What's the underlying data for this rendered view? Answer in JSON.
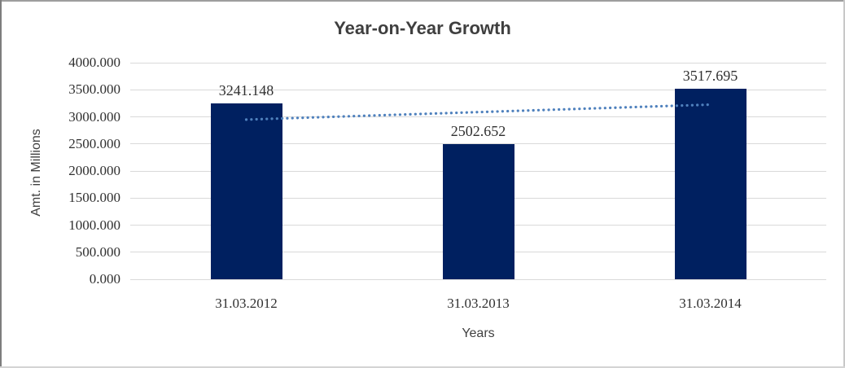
{
  "window": {
    "background": "#ffffff",
    "border_colors": {
      "top": "#9e9e9e",
      "left": "#7d7d7d",
      "right": "#c8c8c8",
      "bottom": "#d4d4d4"
    }
  },
  "chart_data": {
    "type": "bar",
    "title": "Year-on-Year Growth",
    "xlabel": "Years",
    "ylabel": "Amt. in Millions",
    "categories": [
      "31.03.2012",
      "31.03.2013",
      "31.03.2014"
    ],
    "values": [
      3241.148,
      2502.652,
      3517.695
    ],
    "data_labels": [
      "3241.148",
      "2502.652",
      "3517.695"
    ],
    "ylim": [
      0,
      4000
    ],
    "ytick_step": 500,
    "ytick_labels": [
      "0.000",
      "500.000",
      "1000.000",
      "1500.000",
      "2000.000",
      "2500.000",
      "3000.000",
      "3500.000",
      "4000.000"
    ],
    "grid": true,
    "legend": "none",
    "colors": {
      "bar": "#002060",
      "trendline": "#4F81BD",
      "gridline": "#d9d9d9",
      "title_text": "#3f3f3f",
      "label_text": "#303030"
    },
    "trendline": {
      "kind": "linear",
      "style": "dotted",
      "color": "#4F81BD"
    }
  }
}
